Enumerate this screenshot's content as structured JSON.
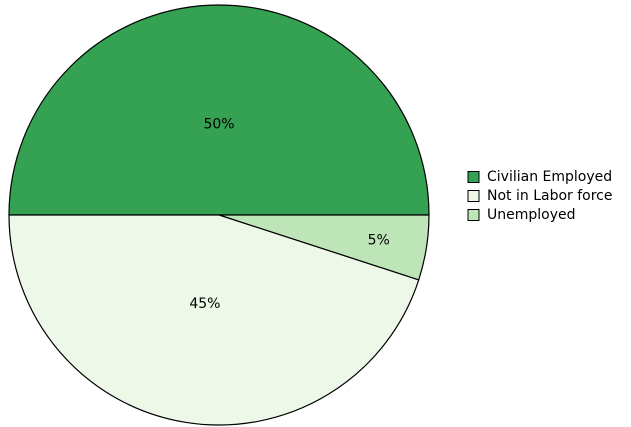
{
  "chart_data": {
    "type": "pie",
    "title": "",
    "legend_position": "right",
    "slices": [
      {
        "label": "Civilian Employed",
        "value": 50,
        "display": "50%",
        "color": "#35a153"
      },
      {
        "label": "Unemployed",
        "value": 5,
        "display": "5%",
        "color": "#bde5b8"
      },
      {
        "label": "Not in Labor force",
        "value": 45,
        "display": "45%",
        "color": "#edf8e9"
      }
    ],
    "legend": [
      {
        "label": "Civilian Employed",
        "color": "#35a153"
      },
      {
        "label": "Not in Labor force",
        "color": "#edf8e9"
      },
      {
        "label": "Unemployed",
        "color": "#bde5b8"
      }
    ]
  }
}
